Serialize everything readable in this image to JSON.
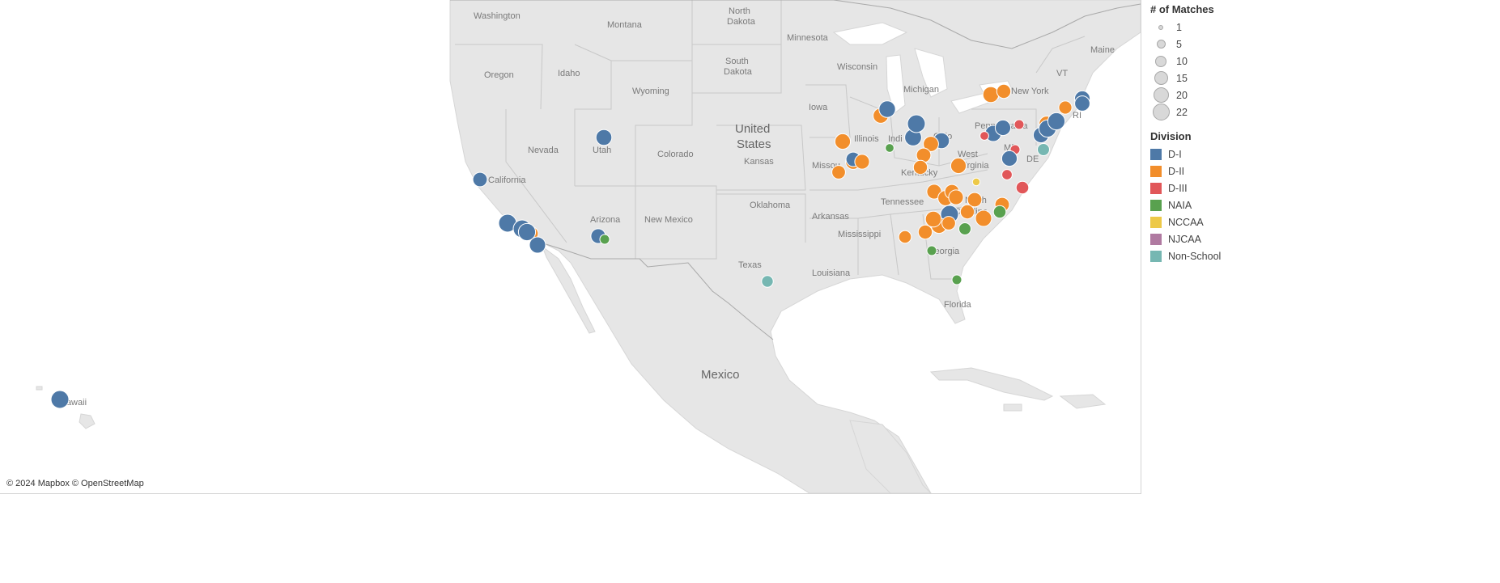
{
  "map": {
    "attribution": "© 2024 Mapbox © OpenStreetMap",
    "labels": {
      "washington": "Washington",
      "montana": "Montana",
      "north_dakota_1": "North",
      "north_dakota_2": "Dakota",
      "minnesota": "Minnesota",
      "maine": "Maine",
      "oregon": "Oregon",
      "idaho": "Idaho",
      "south_dakota_1": "South",
      "south_dakota_2": "Dakota",
      "wyoming": "Wyoming",
      "wisconsin": "Wisconsin",
      "michigan": "Michigan",
      "new_york": "New York",
      "vt": "VT",
      "iowa": "Iowa",
      "nevada": "Nevada",
      "utah": "Utah",
      "colorado": "Colorado",
      "us_1": "United",
      "us_2": "States",
      "illinois": "Illinois",
      "indiana": "Indi",
      "ohio": "Ohio",
      "pennsylvania": "Pennsylvania",
      "california": "California",
      "kansas": "Kansas",
      "missouri": "Missou",
      "kentucky": "Kentucky",
      "west_virginia_1": "West",
      "west_virginia_2": "Virginia",
      "md": "MD",
      "de": "DE",
      "ri": "RI",
      "arizona": "Arizona",
      "new_mexico": "New Mexico",
      "oklahoma": "Oklahoma",
      "tennessee": "Tennessee",
      "north_carolina_1": "North",
      "north_carolina_2": "Carolina",
      "arkansas": "Arkansas",
      "mississippi": "Mississippi",
      "georgia": "Georgia",
      "texas": "Texas",
      "louisiana": "Louisiana",
      "florida": "Florida",
      "mexico": "Mexico",
      "hawaii": "Hawaii"
    },
    "points": [
      {
        "division": "D-I",
        "matches": 22,
        "place": "Hawaii"
      },
      {
        "division": "D-I",
        "matches": 12,
        "place": "Northern California"
      },
      {
        "division": "D-I",
        "matches": 16,
        "place": "Utah"
      },
      {
        "division": "D-I",
        "matches": 22,
        "place": "Southern California 1"
      },
      {
        "division": "D-I",
        "matches": 22,
        "place": "Southern California 2"
      },
      {
        "division": "D-II",
        "matches": 12,
        "place": "Southern California 3"
      },
      {
        "division": "D-I",
        "matches": 20,
        "place": "Southern California 4"
      },
      {
        "division": "D-I",
        "matches": 17,
        "place": "San Diego"
      },
      {
        "division": "D-I",
        "matches": 13,
        "place": "Arizona"
      },
      {
        "division": "NAIA",
        "matches": 3,
        "place": "Arizona 2"
      },
      {
        "division": "Non-School",
        "matches": 6,
        "place": "Texas"
      },
      {
        "division": "D-II",
        "matches": 15,
        "place": "Missouri 1"
      },
      {
        "division": "D-II",
        "matches": 14,
        "place": "Missouri 2"
      },
      {
        "division": "D-I",
        "matches": 12,
        "place": "Missouri 3"
      },
      {
        "division": "D-II",
        "matches": 13,
        "place": "Missouri 4"
      },
      {
        "division": "D-II",
        "matches": 10,
        "place": "Missouri 5"
      },
      {
        "division": "D-II",
        "matches": 14,
        "place": "Illinois"
      },
      {
        "division": "D-I",
        "matches": 18,
        "place": "Chicago"
      },
      {
        "division": "NAIA",
        "matches": 2,
        "place": "Illinois 2"
      },
      {
        "division": "D-I",
        "matches": 19,
        "place": "Indiana 1"
      },
      {
        "division": "D-I",
        "matches": 22,
        "place": "Indiana 2"
      },
      {
        "division": "D-I",
        "matches": 16,
        "place": "Ohio"
      },
      {
        "division": "D-II",
        "matches": 14,
        "place": "Ohio 2"
      },
      {
        "division": "D-II",
        "matches": 12,
        "place": "Kentucky 1"
      },
      {
        "division": "D-II",
        "matches": 11,
        "place": "Kentucky 2"
      },
      {
        "division": "D-II",
        "matches": 15,
        "place": "West Virginia"
      },
      {
        "division": "D-II",
        "matches": 16,
        "place": "New York 1"
      },
      {
        "division": "D-II",
        "matches": 11,
        "place": "New York 2"
      },
      {
        "division": "D-I",
        "matches": 17,
        "place": "Pennsylvania 1"
      },
      {
        "division": "D-I",
        "matches": 15,
        "place": "Pennsylvania 2"
      },
      {
        "division": "D-III",
        "matches": 2,
        "place": "Pennsylvania 3"
      },
      {
        "division": "D-III",
        "matches": 3,
        "place": "Maryland"
      },
      {
        "division": "D-I",
        "matches": 15,
        "place": "Maryland 2"
      },
      {
        "division": "Non-School",
        "matches": 7,
        "place": "Delaware"
      },
      {
        "division": "D-I",
        "matches": 15,
        "place": "New Jersey"
      },
      {
        "division": "D-II",
        "matches": 14,
        "place": "New Jersey 2"
      },
      {
        "division": "D-I",
        "matches": 20,
        "place": "New York City"
      },
      {
        "division": "D-I",
        "matches": 20,
        "place": "New York City 2"
      },
      {
        "division": "D-II",
        "matches": 9,
        "place": "Connecticut"
      },
      {
        "division": "D-I",
        "matches": 15,
        "place": "Boston"
      },
      {
        "division": "D-I",
        "matches": 14,
        "place": "Rhode Island"
      },
      {
        "division": "D-III",
        "matches": 3,
        "place": "Virginia 1"
      },
      {
        "division": "D-III",
        "matches": 4,
        "place": "Virginia 2"
      },
      {
        "division": "D-III",
        "matches": 8,
        "place": "Virginia 3"
      },
      {
        "division": "NCCAA",
        "matches": 1,
        "place": "North Carolina 1"
      },
      {
        "division": "D-II",
        "matches": 12,
        "place": "Tennessee 1"
      },
      {
        "division": "D-II",
        "matches": 13,
        "place": "Tennessee 2"
      },
      {
        "division": "D-II",
        "matches": 14,
        "place": "Tennessee 3"
      },
      {
        "division": "D-II",
        "matches": 12,
        "place": "Tennessee 4"
      },
      {
        "division": "D-II",
        "matches": 13,
        "place": "Tennessee 5"
      },
      {
        "division": "D-I",
        "matches": 22,
        "place": "North Carolina 2"
      },
      {
        "division": "D-II",
        "matches": 11,
        "place": "North Carolina 3"
      },
      {
        "division": "D-II",
        "matches": 12,
        "place": "North Carolina 4"
      },
      {
        "division": "NAIA",
        "matches": 8,
        "place": "South Carolina"
      },
      {
        "division": "D-II",
        "matches": 17,
        "place": "Georgia 1"
      },
      {
        "division": "D-II",
        "matches": 15,
        "place": "Georgia 2"
      },
      {
        "division": "D-II",
        "matches": 10,
        "place": "Georgia 3"
      },
      {
        "division": "NAIA",
        "matches": 3,
        "place": "Georgia 4"
      },
      {
        "division": "D-II",
        "matches": 11,
        "place": "Georgia 5"
      },
      {
        "division": "D-II",
        "matches": 16,
        "place": "Georgia 6"
      },
      {
        "division": "NAIA",
        "matches": 7,
        "place": "Alabama"
      },
      {
        "division": "D-II",
        "matches": 8,
        "place": "Jacksonville"
      },
      {
        "division": "NAIA",
        "matches": 3,
        "place": "Florida"
      }
    ]
  },
  "legend": {
    "size_title": "# of Matches",
    "sizes": [
      {
        "label": "1",
        "value": 1
      },
      {
        "label": "5",
        "value": 5
      },
      {
        "label": "10",
        "value": 10
      },
      {
        "label": "15",
        "value": 15
      },
      {
        "label": "20",
        "value": 20
      },
      {
        "label": "22",
        "value": 22
      }
    ],
    "division_title": "Division",
    "divisions": [
      {
        "label": "D-I",
        "color": "#4e79a7"
      },
      {
        "label": "D-II",
        "color": "#f28e2b"
      },
      {
        "label": "D-III",
        "color": "#e15759"
      },
      {
        "label": "NAIA",
        "color": "#59a14f"
      },
      {
        "label": "NCCAA",
        "color": "#edc948"
      },
      {
        "label": "NJCAA",
        "color": "#b07aa1"
      },
      {
        "label": "Non-School",
        "color": "#76b7b2"
      }
    ]
  }
}
